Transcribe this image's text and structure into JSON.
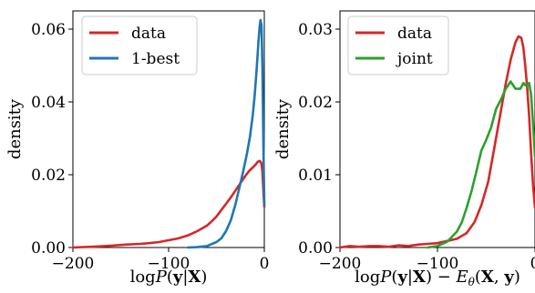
{
  "chart_data": [
    {
      "type": "line",
      "xlabel": "logP(y|X)",
      "ylabel": "density",
      "xlim": [
        -200,
        0
      ],
      "ylim": [
        0,
        0.065
      ],
      "xticks": [
        -200,
        -100,
        0
      ],
      "xtick_labels": [
        "−200",
        "−100",
        "0"
      ],
      "yticks": [
        0,
        0.02,
        0.04,
        0.06
      ],
      "ytick_labels": [
        "0.00",
        "0.02",
        "0.04",
        "0.06"
      ],
      "grid": false,
      "legend_position": "top-left",
      "series": [
        {
          "name": "data",
          "color": "#d62728",
          "x": [
            -200,
            -180,
            -160,
            -145,
            -130,
            -120,
            -110,
            -100,
            -90,
            -80,
            -70,
            -60,
            -55,
            -50,
            -45,
            -40,
            -35,
            -30,
            -25,
            -20,
            -16,
            -12,
            -9,
            -7,
            -5,
            -4,
            -3,
            -2,
            -1,
            0
          ],
          "y": [
            0.0,
            0.0002,
            0.0005,
            0.0008,
            0.001,
            0.0012,
            0.0015,
            0.002,
            0.0025,
            0.0033,
            0.0045,
            0.006,
            0.0072,
            0.0085,
            0.0103,
            0.012,
            0.0138,
            0.0157,
            0.0177,
            0.0196,
            0.021,
            0.022,
            0.0228,
            0.0235,
            0.0238,
            0.0236,
            0.023,
            0.021,
            0.016,
            0.0112
          ]
        },
        {
          "name": "1-best",
          "color": "#1f77b4",
          "x": [
            -80,
            -70,
            -60,
            -50,
            -45,
            -40,
            -35,
            -30,
            -26,
            -22,
            -18,
            -15,
            -12,
            -10,
            -8,
            -6,
            -5,
            -4,
            -3,
            -2,
            -1,
            0
          ],
          "y": [
            0.0,
            0.0001,
            0.0004,
            0.0015,
            0.0025,
            0.0045,
            0.0075,
            0.012,
            0.0165,
            0.021,
            0.026,
            0.0305,
            0.0365,
            0.042,
            0.049,
            0.057,
            0.0605,
            0.0625,
            0.061,
            0.05,
            0.03,
            0.0118
          ]
        }
      ]
    },
    {
      "type": "line",
      "xlabel": "logP(y|X) − Eθ(X, y)",
      "ylabel": "density",
      "xlim": [
        -200,
        0
      ],
      "ylim": [
        0,
        0.0325
      ],
      "xticks": [
        -200,
        -100,
        0
      ],
      "xtick_labels": [
        "−200",
        "−100",
        "0"
      ],
      "yticks": [
        0,
        0.01,
        0.02,
        0.03
      ],
      "ytick_labels": [
        "0.00",
        "0.01",
        "0.02",
        "0.03"
      ],
      "grid": false,
      "legend_position": "top-left",
      "series": [
        {
          "name": "data",
          "color": "#d62728",
          "x": [
            -200,
            -190,
            -180,
            -170,
            -160,
            -150,
            -140,
            -130,
            -120,
            -110,
            -100,
            -90,
            -80,
            -70,
            -62,
            -55,
            -48,
            -42,
            -36,
            -30,
            -25,
            -20,
            -17,
            -14,
            -12,
            -10,
            -8,
            -6,
            -4,
            -2,
            0
          ],
          "y": [
            0.0,
            0.0002,
            0.0001,
            0.0002,
            0.0002,
            0.0001,
            0.0003,
            0.0002,
            0.0004,
            0.0005,
            0.0006,
            0.0009,
            0.0012,
            0.002,
            0.0035,
            0.0058,
            0.009,
            0.0135,
            0.018,
            0.0225,
            0.0258,
            0.0282,
            0.029,
            0.0288,
            0.0275,
            0.025,
            0.022,
            0.018,
            0.013,
            0.0085,
            0.0055
          ]
        },
        {
          "name": "joint",
          "color": "#2ca02c",
          "x": [
            -110,
            -100,
            -90,
            -80,
            -75,
            -70,
            -65,
            -60,
            -55,
            -50,
            -45,
            -40,
            -35,
            -30,
            -25,
            -20,
            -15,
            -12,
            -10,
            -8,
            -6,
            -4,
            -2,
            0
          ],
          "y": [
            0.0,
            0.0002,
            0.0008,
            0.0022,
            0.0035,
            0.0055,
            0.0078,
            0.0105,
            0.0133,
            0.0148,
            0.0165,
            0.019,
            0.0203,
            0.0218,
            0.0228,
            0.0218,
            0.0218,
            0.0226,
            0.0223,
            0.0222,
            0.0226,
            0.021,
            0.017,
            0.0125
          ]
        }
      ]
    }
  ]
}
